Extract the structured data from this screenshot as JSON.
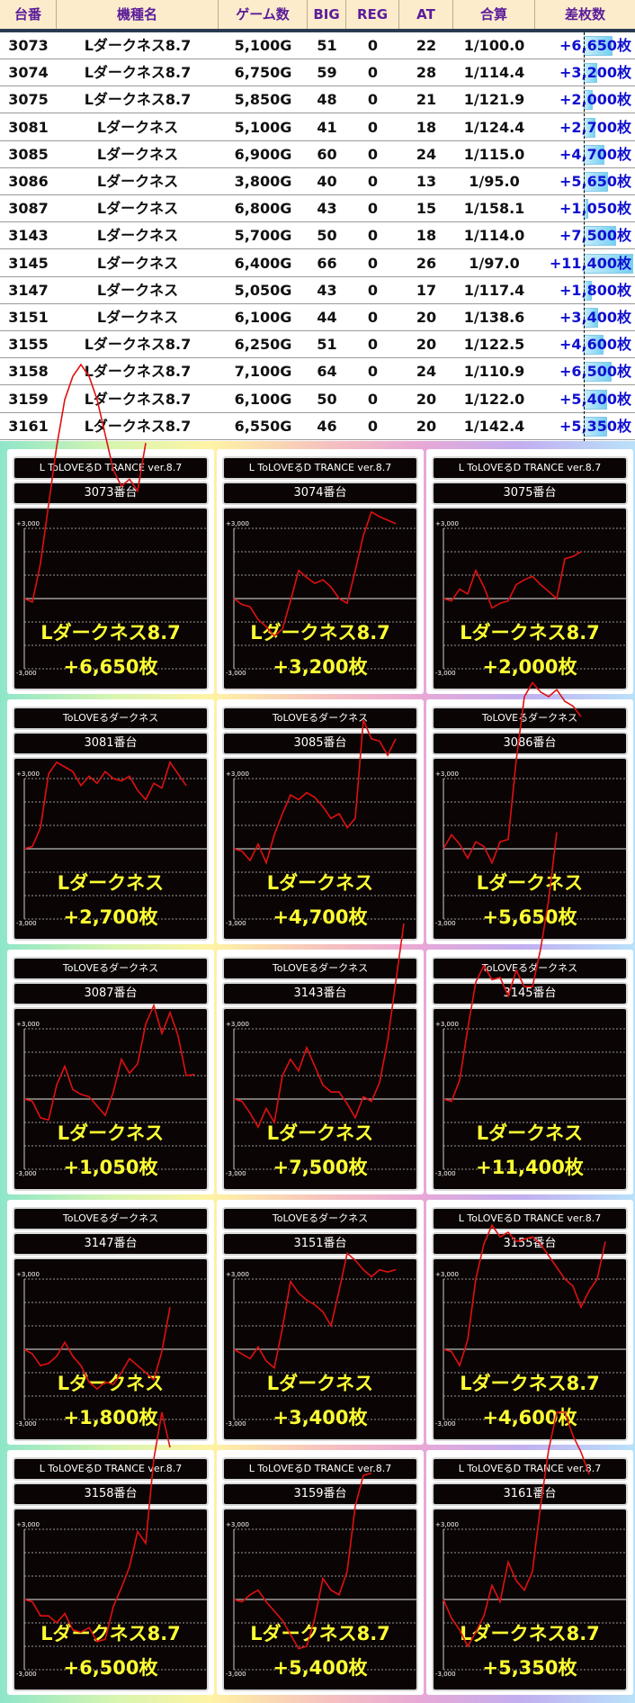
{
  "table": {
    "headers": [
      "台番",
      "機種名",
      "ゲーム数",
      "BIG",
      "REG",
      "AT",
      "合算",
      "差枚数"
    ],
    "rows": [
      [
        "3073",
        "Lダークネス8.7",
        "5,100G",
        "51",
        "0",
        "22",
        "1/100.0",
        "+6,650枚",
        6650
      ],
      [
        "3074",
        "Lダークネス8.7",
        "6,750G",
        "59",
        "0",
        "28",
        "1/114.4",
        "+3,200枚",
        3200
      ],
      [
        "3075",
        "Lダークネス8.7",
        "5,850G",
        "48",
        "0",
        "21",
        "1/121.9",
        "+2,000枚",
        2000
      ],
      [
        "3081",
        "Lダークネス",
        "5,100G",
        "41",
        "0",
        "18",
        "1/124.4",
        "+2,700枚",
        2700
      ],
      [
        "3085",
        "Lダークネス",
        "6,900G",
        "60",
        "0",
        "24",
        "1/115.0",
        "+4,700枚",
        4700
      ],
      [
        "3086",
        "Lダークネス",
        "3,800G",
        "40",
        "0",
        "13",
        "1/95.0",
        "+5,650枚",
        5650
      ],
      [
        "3087",
        "Lダークネス",
        "6,800G",
        "43",
        "0",
        "15",
        "1/158.1",
        "+1,050枚",
        1050
      ],
      [
        "3143",
        "Lダークネス",
        "5,700G",
        "50",
        "0",
        "18",
        "1/114.0",
        "+7,500枚",
        7500
      ],
      [
        "3145",
        "Lダークネス",
        "6,400G",
        "66",
        "0",
        "26",
        "1/97.0",
        "+11,400枚",
        11400
      ],
      [
        "3147",
        "Lダークネス",
        "5,050G",
        "43",
        "0",
        "17",
        "1/117.4",
        "+1,800枚",
        1800
      ],
      [
        "3151",
        "Lダークネス",
        "6,100G",
        "44",
        "0",
        "20",
        "1/138.6",
        "+3,400枚",
        3400
      ],
      [
        "3155",
        "Lダークネス8.7",
        "6,250G",
        "51",
        "0",
        "20",
        "1/122.5",
        "+4,600枚",
        4600
      ],
      [
        "3158",
        "Lダークネス8.7",
        "7,100G",
        "64",
        "0",
        "24",
        "1/110.9",
        "+6,500枚",
        6500
      ],
      [
        "3159",
        "Lダークネス8.7",
        "6,100G",
        "50",
        "0",
        "20",
        "1/122.0",
        "+5,400枚",
        5400
      ],
      [
        "3161",
        "Lダークネス8.7",
        "6,550G",
        "46",
        "0",
        "20",
        "1/142.4",
        "+5,350枚",
        5350
      ]
    ]
  },
  "colors": {
    "header_bg": "#fdeccb",
    "header_text": "#5b1d9a",
    "diff_text": "#1010d0",
    "bar": "#74d0f3",
    "line": "#e01010",
    "card_text": "#ffff33"
  },
  "chart_data": {
    "type": "line",
    "y_tick_top": "+3,000",
    "y_tick_bottom": "-3,000",
    "ylim": [
      -3000,
      3000
    ],
    "grid": true,
    "cards": [
      {
        "title": "L ToLOVEるD TRANCE ver.8.7",
        "unit": "3073番台",
        "name": "Lダークネス8.7",
        "diff": "+6,650枚",
        "values": [
          0,
          -150,
          1500,
          4000,
          6500,
          8500,
          9500,
          10000,
          9500,
          8500,
          7000,
          5500,
          4800,
          5100,
          4600,
          6650
        ]
      },
      {
        "title": "L ToLOVEるD TRANCE ver.8.7",
        "unit": "3074番台",
        "name": "Lダークネス8.7",
        "diff": "+3,200枚",
        "values": [
          0,
          -250,
          -350,
          -900,
          -1200,
          -1600,
          -1300,
          -100,
          1200,
          900,
          650,
          800,
          500,
          0,
          -200,
          1200,
          2700,
          3700,
          3500,
          3350,
          3200
        ]
      },
      {
        "title": "L ToLOVEるD TRANCE ver.8.7",
        "unit": "3075番台",
        "name": "Lダークネス8.7",
        "diff": "+2,000枚",
        "values": [
          0,
          -100,
          400,
          200,
          1200,
          500,
          -400,
          -200,
          -100,
          600,
          800,
          950,
          600,
          300,
          0,
          1700,
          1800,
          2000
        ]
      },
      {
        "title": "ToLOVEるダークネス",
        "unit": "3081番台",
        "name": "Lダークネス",
        "diff": "+2,700枚",
        "values": [
          0,
          100,
          900,
          3200,
          3700,
          3500,
          3300,
          2700,
          3100,
          2800,
          3300,
          3000,
          2900,
          3100,
          2500,
          2100,
          2800,
          2600,
          3700,
          3200,
          2700
        ]
      },
      {
        "title": "ToLOVEるダークネス",
        "unit": "3085番台",
        "name": "Lダークネス",
        "diff": "+4,700枚",
        "values": [
          0,
          -100,
          -500,
          200,
          -600,
          600,
          1500,
          2300,
          2100,
          2400,
          2200,
          1800,
          1300,
          1500,
          900,
          1300,
          5500,
          4700,
          4600,
          4000,
          4700
        ]
      },
      {
        "title": "ToLOVEるダークネス",
        "unit": "3086番台",
        "name": "Lダークネス",
        "diff": "+5,650枚",
        "values": [
          0,
          600,
          200,
          -400,
          300,
          100,
          -600,
          300,
          400,
          3800,
          6500,
          7100,
          6700,
          6500,
          6800,
          6300,
          6100,
          5650
        ]
      },
      {
        "title": "ToLOVEるダークネス",
        "unit": "3087番台",
        "name": "Lダークネス",
        "diff": "+1,050枚",
        "values": [
          0,
          -100,
          -800,
          -900,
          600,
          1400,
          400,
          200,
          100,
          -300,
          -700,
          300,
          1700,
          1100,
          1500,
          3200,
          4000,
          2800,
          3700,
          2700,
          1000,
          1050
        ]
      },
      {
        "title": "ToLOVEるダークネス",
        "unit": "3143番台",
        "name": "Lダークネス",
        "diff": "+7,500枚",
        "values": [
          0,
          -100,
          -600,
          -1200,
          -400,
          -1000,
          1000,
          1700,
          1200,
          2200,
          1400,
          600,
          300,
          300,
          -200,
          -800,
          100,
          -100,
          700,
          2500,
          5000,
          7500
        ]
      },
      {
        "title": "ToLOVEるダークネス",
        "unit": "3145番台",
        "name": "Lダークネス",
        "diff": "+11,400枚",
        "values": [
          0,
          -100,
          800,
          3000,
          5000,
          5700,
          5100,
          5200,
          4400,
          5500,
          4800,
          4800,
          6400,
          8500,
          11400
        ]
      },
      {
        "title": "ToLOVEるダークネス",
        "unit": "3147番台",
        "name": "Lダークネス",
        "diff": "+1,800枚",
        "values": [
          0,
          -200,
          -700,
          -600,
          -300,
          300,
          -300,
          -700,
          -1400,
          -1700,
          -1400,
          -1500,
          -1000,
          -400,
          -700,
          -1000,
          -1300,
          -100,
          1800
        ]
      },
      {
        "title": "ToLOVEるダークネス",
        "unit": "3151番台",
        "name": "Lダークネス",
        "diff": "+3,400枚",
        "values": [
          0,
          -200,
          -400,
          100,
          -500,
          -800,
          900,
          2900,
          2400,
          2100,
          1900,
          1600,
          1000,
          2500,
          4100,
          3800,
          3400,
          3100,
          3400,
          3300,
          3400
        ]
      },
      {
        "title": "L ToLOVEるD TRANCE ver.8.7",
        "unit": "3155番台",
        "name": "Lダークネス8.7",
        "diff": "+4,600枚",
        "values": [
          0,
          -100,
          -700,
          400,
          3000,
          4500,
          5300,
          4800,
          5000,
          4600,
          4700,
          4800,
          4500,
          4000,
          3500,
          3000,
          2700,
          1800,
          2500,
          3000,
          4600
        ]
      },
      {
        "title": "L ToLOVEるD TRANCE ver.8.7",
        "unit": "3158番台",
        "name": "Lダークネス8.7",
        "diff": "+6,500枚",
        "values": [
          0,
          -100,
          -700,
          -700,
          -1000,
          -600,
          -1300,
          -1400,
          -1200,
          -1800,
          -1700,
          -300,
          500,
          1400,
          2900,
          2400,
          6000,
          8000,
          6500
        ]
      },
      {
        "title": "L ToLOVEるD TRANCE ver.8.7",
        "unit": "3159番台",
        "name": "Lダークネス8.7",
        "diff": "+5,400枚",
        "values": [
          0,
          -100,
          200,
          400,
          -100,
          -500,
          -900,
          -1500,
          -2100,
          -2000,
          -800,
          900,
          400,
          200,
          1200,
          4000,
          5300,
          5400
        ]
      },
      {
        "title": "L ToLOVEるD TRANCE ver.8.7",
        "unit": "3161番台",
        "name": "Lダークネス8.7",
        "diff": "+5,350枚",
        "values": [
          0,
          -800,
          -1300,
          -2000,
          -1400,
          -700,
          600,
          -100,
          1600,
          800,
          400,
          1200,
          4000,
          6400,
          8000,
          8000,
          7000,
          6300,
          5350
        ]
      }
    ]
  }
}
